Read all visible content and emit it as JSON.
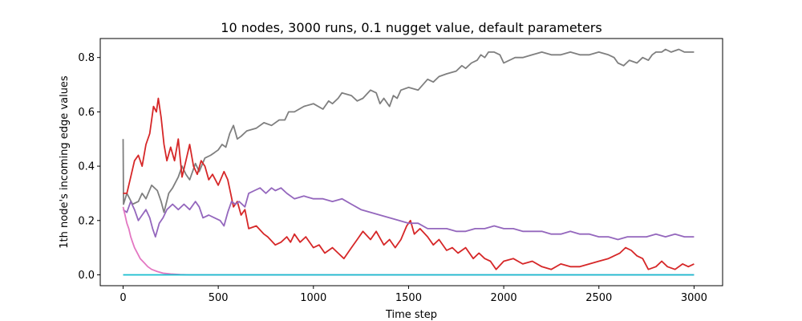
{
  "chart_data": {
    "type": "line",
    "title": "10 nodes, 3000 runs, 0.1 nugget value, default parameters",
    "xlabel": "Time step",
    "ylabel": "1th node's incoming edge values",
    "xlim": [
      -120,
      3150
    ],
    "ylim": [
      -0.04,
      0.87
    ],
    "xticks": [
      0,
      500,
      1000,
      1500,
      2000,
      2500,
      3000
    ],
    "yticks": [
      0.0,
      0.2,
      0.4,
      0.6,
      0.8
    ],
    "grid": false,
    "series": [
      {
        "color": "#7f7f7f",
        "points": [
          [
            0,
            0.5
          ],
          [
            2,
            0.26
          ],
          [
            20,
            0.3
          ],
          [
            50,
            0.26
          ],
          [
            80,
            0.27
          ],
          [
            100,
            0.3
          ],
          [
            120,
            0.28
          ],
          [
            150,
            0.33
          ],
          [
            180,
            0.31
          ],
          [
            200,
            0.27
          ],
          [
            215,
            0.23
          ],
          [
            240,
            0.3
          ],
          [
            260,
            0.32
          ],
          [
            290,
            0.36
          ],
          [
            310,
            0.4
          ],
          [
            330,
            0.37
          ],
          [
            350,
            0.35
          ],
          [
            380,
            0.41
          ],
          [
            400,
            0.38
          ],
          [
            430,
            0.43
          ],
          [
            460,
            0.44
          ],
          [
            480,
            0.45
          ],
          [
            500,
            0.46
          ],
          [
            520,
            0.48
          ],
          [
            540,
            0.47
          ],
          [
            560,
            0.52
          ],
          [
            580,
            0.55
          ],
          [
            600,
            0.5
          ],
          [
            620,
            0.51
          ],
          [
            650,
            0.53
          ],
          [
            700,
            0.54
          ],
          [
            740,
            0.56
          ],
          [
            780,
            0.55
          ],
          [
            820,
            0.57
          ],
          [
            850,
            0.57
          ],
          [
            870,
            0.6
          ],
          [
            900,
            0.6
          ],
          [
            950,
            0.62
          ],
          [
            1000,
            0.63
          ],
          [
            1050,
            0.61
          ],
          [
            1080,
            0.64
          ],
          [
            1100,
            0.63
          ],
          [
            1130,
            0.65
          ],
          [
            1150,
            0.67
          ],
          [
            1200,
            0.66
          ],
          [
            1230,
            0.64
          ],
          [
            1260,
            0.65
          ],
          [
            1300,
            0.68
          ],
          [
            1330,
            0.67
          ],
          [
            1350,
            0.63
          ],
          [
            1370,
            0.65
          ],
          [
            1400,
            0.62
          ],
          [
            1420,
            0.66
          ],
          [
            1440,
            0.65
          ],
          [
            1460,
            0.68
          ],
          [
            1500,
            0.69
          ],
          [
            1550,
            0.68
          ],
          [
            1600,
            0.72
          ],
          [
            1630,
            0.71
          ],
          [
            1660,
            0.73
          ],
          [
            1700,
            0.74
          ],
          [
            1750,
            0.75
          ],
          [
            1780,
            0.77
          ],
          [
            1800,
            0.76
          ],
          [
            1830,
            0.78
          ],
          [
            1860,
            0.79
          ],
          [
            1880,
            0.81
          ],
          [
            1900,
            0.8
          ],
          [
            1920,
            0.82
          ],
          [
            1950,
            0.82
          ],
          [
            1980,
            0.81
          ],
          [
            2000,
            0.78
          ],
          [
            2030,
            0.79
          ],
          [
            2060,
            0.8
          ],
          [
            2100,
            0.8
          ],
          [
            2150,
            0.81
          ],
          [
            2200,
            0.82
          ],
          [
            2250,
            0.81
          ],
          [
            2300,
            0.81
          ],
          [
            2350,
            0.82
          ],
          [
            2400,
            0.81
          ],
          [
            2450,
            0.81
          ],
          [
            2500,
            0.82
          ],
          [
            2550,
            0.81
          ],
          [
            2580,
            0.8
          ],
          [
            2600,
            0.78
          ],
          [
            2630,
            0.77
          ],
          [
            2660,
            0.79
          ],
          [
            2700,
            0.78
          ],
          [
            2730,
            0.8
          ],
          [
            2760,
            0.79
          ],
          [
            2780,
            0.81
          ],
          [
            2800,
            0.82
          ],
          [
            2830,
            0.82
          ],
          [
            2850,
            0.83
          ],
          [
            2880,
            0.82
          ],
          [
            2920,
            0.83
          ],
          [
            2950,
            0.82
          ],
          [
            2980,
            0.82
          ],
          [
            3000,
            0.82
          ]
        ]
      },
      {
        "color": "#d62728",
        "points": [
          [
            0,
            0.3
          ],
          [
            20,
            0.3
          ],
          [
            40,
            0.36
          ],
          [
            60,
            0.42
          ],
          [
            80,
            0.44
          ],
          [
            100,
            0.4
          ],
          [
            120,
            0.48
          ],
          [
            140,
            0.52
          ],
          [
            160,
            0.62
          ],
          [
            175,
            0.6
          ],
          [
            185,
            0.65
          ],
          [
            200,
            0.58
          ],
          [
            215,
            0.48
          ],
          [
            230,
            0.42
          ],
          [
            250,
            0.47
          ],
          [
            270,
            0.42
          ],
          [
            290,
            0.5
          ],
          [
            310,
            0.36
          ],
          [
            330,
            0.42
          ],
          [
            350,
            0.48
          ],
          [
            370,
            0.4
          ],
          [
            390,
            0.37
          ],
          [
            410,
            0.42
          ],
          [
            430,
            0.4
          ],
          [
            450,
            0.35
          ],
          [
            470,
            0.37
          ],
          [
            500,
            0.33
          ],
          [
            530,
            0.38
          ],
          [
            550,
            0.35
          ],
          [
            565,
            0.3
          ],
          [
            580,
            0.25
          ],
          [
            600,
            0.27
          ],
          [
            620,
            0.22
          ],
          [
            640,
            0.24
          ],
          [
            660,
            0.17
          ],
          [
            700,
            0.18
          ],
          [
            740,
            0.15
          ],
          [
            760,
            0.14
          ],
          [
            800,
            0.11
          ],
          [
            830,
            0.12
          ],
          [
            860,
            0.14
          ],
          [
            880,
            0.12
          ],
          [
            900,
            0.15
          ],
          [
            930,
            0.12
          ],
          [
            960,
            0.14
          ],
          [
            1000,
            0.1
          ],
          [
            1030,
            0.11
          ],
          [
            1060,
            0.08
          ],
          [
            1100,
            0.1
          ],
          [
            1130,
            0.08
          ],
          [
            1160,
            0.06
          ],
          [
            1200,
            0.1
          ],
          [
            1230,
            0.13
          ],
          [
            1260,
            0.16
          ],
          [
            1300,
            0.13
          ],
          [
            1330,
            0.16
          ],
          [
            1370,
            0.11
          ],
          [
            1400,
            0.13
          ],
          [
            1430,
            0.1
          ],
          [
            1460,
            0.13
          ],
          [
            1490,
            0.18
          ],
          [
            1510,
            0.2
          ],
          [
            1530,
            0.15
          ],
          [
            1560,
            0.17
          ],
          [
            1600,
            0.14
          ],
          [
            1630,
            0.11
          ],
          [
            1660,
            0.13
          ],
          [
            1700,
            0.09
          ],
          [
            1730,
            0.1
          ],
          [
            1760,
            0.08
          ],
          [
            1800,
            0.1
          ],
          [
            1840,
            0.06
          ],
          [
            1870,
            0.08
          ],
          [
            1900,
            0.06
          ],
          [
            1930,
            0.05
          ],
          [
            1960,
            0.02
          ],
          [
            2000,
            0.05
          ],
          [
            2050,
            0.06
          ],
          [
            2100,
            0.04
          ],
          [
            2150,
            0.05
          ],
          [
            2200,
            0.03
          ],
          [
            2250,
            0.02
          ],
          [
            2300,
            0.04
          ],
          [
            2350,
            0.03
          ],
          [
            2400,
            0.03
          ],
          [
            2450,
            0.04
          ],
          [
            2500,
            0.05
          ],
          [
            2550,
            0.06
          ],
          [
            2580,
            0.07
          ],
          [
            2610,
            0.08
          ],
          [
            2640,
            0.1
          ],
          [
            2670,
            0.09
          ],
          [
            2700,
            0.07
          ],
          [
            2730,
            0.06
          ],
          [
            2760,
            0.02
          ],
          [
            2800,
            0.03
          ],
          [
            2830,
            0.05
          ],
          [
            2860,
            0.03
          ],
          [
            2900,
            0.02
          ],
          [
            2940,
            0.04
          ],
          [
            2970,
            0.03
          ],
          [
            3000,
            0.04
          ]
        ]
      },
      {
        "color": "#9467bd",
        "points": [
          [
            0,
            0.24
          ],
          [
            20,
            0.23
          ],
          [
            40,
            0.27
          ],
          [
            60,
            0.24
          ],
          [
            80,
            0.2
          ],
          [
            100,
            0.22
          ],
          [
            120,
            0.24
          ],
          [
            140,
            0.21
          ],
          [
            155,
            0.17
          ],
          [
            170,
            0.14
          ],
          [
            190,
            0.19
          ],
          [
            210,
            0.21
          ],
          [
            230,
            0.24
          ],
          [
            260,
            0.26
          ],
          [
            290,
            0.24
          ],
          [
            320,
            0.26
          ],
          [
            350,
            0.24
          ],
          [
            380,
            0.27
          ],
          [
            400,
            0.25
          ],
          [
            420,
            0.21
          ],
          [
            450,
            0.22
          ],
          [
            480,
            0.21
          ],
          [
            510,
            0.2
          ],
          [
            530,
            0.18
          ],
          [
            550,
            0.23
          ],
          [
            570,
            0.27
          ],
          [
            590,
            0.26
          ],
          [
            610,
            0.27
          ],
          [
            640,
            0.25
          ],
          [
            660,
            0.3
          ],
          [
            690,
            0.31
          ],
          [
            720,
            0.32
          ],
          [
            750,
            0.3
          ],
          [
            780,
            0.32
          ],
          [
            800,
            0.31
          ],
          [
            830,
            0.32
          ],
          [
            860,
            0.3
          ],
          [
            900,
            0.28
          ],
          [
            950,
            0.29
          ],
          [
            1000,
            0.28
          ],
          [
            1050,
            0.28
          ],
          [
            1100,
            0.27
          ],
          [
            1150,
            0.28
          ],
          [
            1200,
            0.26
          ],
          [
            1250,
            0.24
          ],
          [
            1300,
            0.23
          ],
          [
            1350,
            0.22
          ],
          [
            1400,
            0.21
          ],
          [
            1450,
            0.2
          ],
          [
            1500,
            0.19
          ],
          [
            1550,
            0.19
          ],
          [
            1600,
            0.17
          ],
          [
            1650,
            0.17
          ],
          [
            1700,
            0.17
          ],
          [
            1750,
            0.16
          ],
          [
            1800,
            0.16
          ],
          [
            1850,
            0.17
          ],
          [
            1900,
            0.17
          ],
          [
            1950,
            0.18
          ],
          [
            2000,
            0.17
          ],
          [
            2050,
            0.17
          ],
          [
            2100,
            0.16
          ],
          [
            2150,
            0.16
          ],
          [
            2200,
            0.16
          ],
          [
            2250,
            0.15
          ],
          [
            2300,
            0.15
          ],
          [
            2350,
            0.16
          ],
          [
            2400,
            0.15
          ],
          [
            2450,
            0.15
          ],
          [
            2500,
            0.14
          ],
          [
            2550,
            0.14
          ],
          [
            2600,
            0.13
          ],
          [
            2650,
            0.14
          ],
          [
            2700,
            0.14
          ],
          [
            2750,
            0.14
          ],
          [
            2800,
            0.15
          ],
          [
            2850,
            0.14
          ],
          [
            2900,
            0.15
          ],
          [
            2950,
            0.14
          ],
          [
            3000,
            0.14
          ]
        ]
      },
      {
        "color": "#e377c2",
        "points": [
          [
            0,
            0.25
          ],
          [
            10,
            0.22
          ],
          [
            20,
            0.19
          ],
          [
            30,
            0.17
          ],
          [
            40,
            0.14
          ],
          [
            50,
            0.12
          ],
          [
            60,
            0.1
          ],
          [
            75,
            0.08
          ],
          [
            90,
            0.06
          ],
          [
            110,
            0.045
          ],
          [
            130,
            0.03
          ],
          [
            150,
            0.02
          ],
          [
            180,
            0.012
          ],
          [
            210,
            0.006
          ],
          [
            250,
            0.003
          ],
          [
            300,
            0.001
          ],
          [
            350,
            0.0
          ],
          [
            3000,
            0.0
          ]
        ]
      },
      {
        "color": "#17becf",
        "points": [
          [
            0,
            0.0
          ],
          [
            3000,
            0.0
          ]
        ]
      }
    ]
  }
}
